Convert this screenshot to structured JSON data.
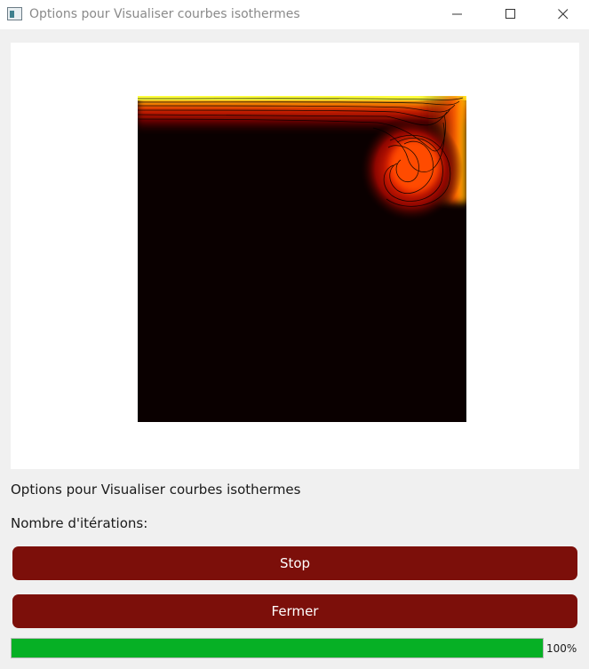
{
  "window": {
    "title": "Options pour Visualiser courbes isothermes",
    "controls": [
      "minimize-icon",
      "maximize-icon",
      "close-icon"
    ]
  },
  "plot": {
    "colormap": "hot",
    "background_color": "#0a0000",
    "isolines_color": "#000000"
  },
  "labels": {
    "title": "Options pour Visualiser courbes isothermes",
    "iterations": "Nombre d'itérations:"
  },
  "buttons": {
    "stop": "Stop",
    "fermer": "Fermer",
    "color": "#7c0f0a"
  },
  "progress": {
    "value": 100,
    "text": "100%",
    "color": "#06b025"
  }
}
